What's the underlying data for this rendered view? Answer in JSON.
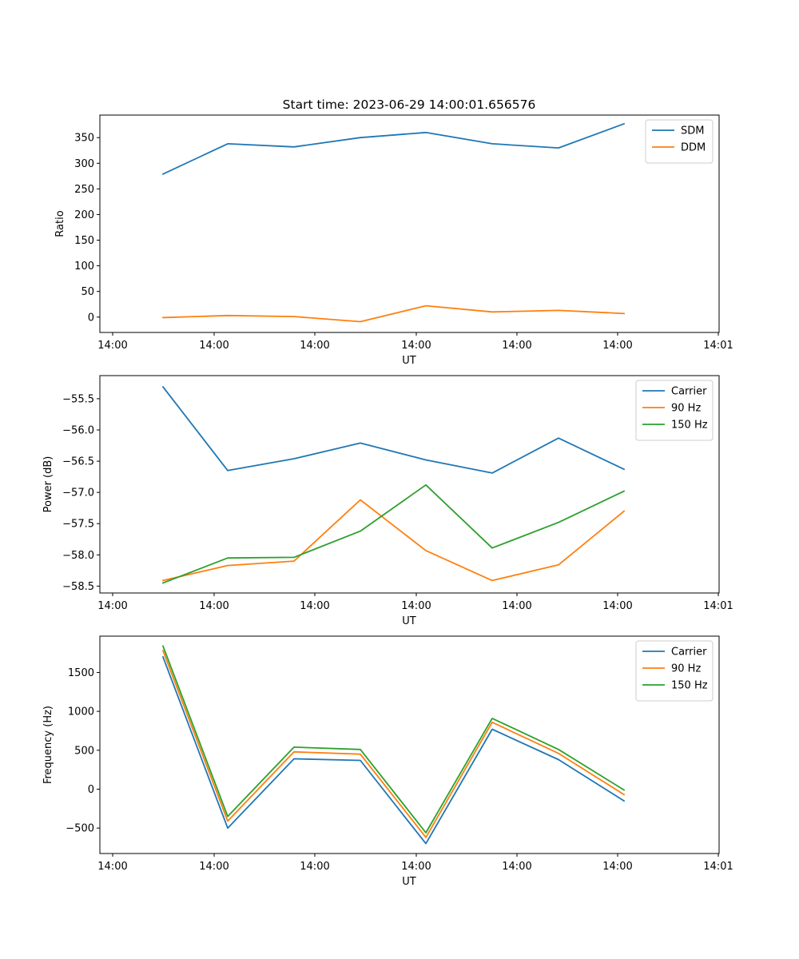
{
  "figure": {
    "title": "Start time: 2023-06-29 14:00:01.656576"
  },
  "chart_data": [
    {
      "type": "line",
      "title": "Start time: 2023-06-29 14:00:01.656576",
      "xlabel": "UT",
      "ylabel": "Ratio",
      "x_tick_labels": [
        "14:00",
        "14:00",
        "14:00",
        "14:00",
        "14:00",
        "14:00",
        "14:01"
      ],
      "y_ticks": [
        0,
        50,
        100,
        150,
        200,
        250,
        300,
        350
      ],
      "y_tick_labels": [
        "0",
        "50",
        "100",
        "150",
        "200",
        "250",
        "300",
        "350"
      ],
      "ylim": [
        -30,
        394
      ],
      "legend_position": "top-right",
      "grid": false,
      "series": [
        {
          "name": "SDM",
          "color": "#1f77b4",
          "values": [
            279,
            338,
            332,
            350,
            360,
            338,
            330,
            377
          ]
        },
        {
          "name": "DDM",
          "color": "#ff7f0e",
          "values": [
            -1,
            3,
            1,
            -9,
            22,
            10,
            13,
            7
          ]
        }
      ]
    },
    {
      "type": "line",
      "title": "",
      "xlabel": "UT",
      "ylabel": "Power (dB)",
      "x_tick_labels": [
        "14:00",
        "14:00",
        "14:00",
        "14:00",
        "14:00",
        "14:00",
        "14:01"
      ],
      "y_ticks": [
        -58.5,
        -58.0,
        -57.5,
        -57.0,
        -56.5,
        -56.0,
        -55.5
      ],
      "y_tick_labels": [
        "−58.5",
        "−58.0",
        "−57.5",
        "−57.0",
        "−56.5",
        "−56.0",
        "−55.5"
      ],
      "ylim": [
        -58.61,
        -55.13
      ],
      "legend_position": "top-right",
      "grid": false,
      "series": [
        {
          "name": "Carrier",
          "color": "#1f77b4",
          "values": [
            -55.31,
            -56.65,
            -56.46,
            -56.21,
            -56.48,
            -56.69,
            -56.13,
            -56.63
          ]
        },
        {
          "name": "90 Hz",
          "color": "#ff7f0e",
          "values": [
            -58.41,
            -58.17,
            -58.1,
            -57.12,
            -57.93,
            -58.41,
            -58.16,
            -57.3
          ]
        },
        {
          "name": "150 Hz",
          "color": "#2ca02c",
          "values": [
            -58.45,
            -58.05,
            -58.04,
            -57.62,
            -56.88,
            -57.89,
            -57.48,
            -56.98
          ]
        }
      ]
    },
    {
      "type": "line",
      "title": "",
      "xlabel": "UT",
      "ylabel": "Frequency (Hz)",
      "x_tick_labels": [
        "14:00",
        "14:00",
        "14:00",
        "14:00",
        "14:00",
        "14:00",
        "14:01"
      ],
      "y_ticks": [
        -500,
        0,
        500,
        1000,
        1500
      ],
      "y_tick_labels": [
        "−500",
        "0",
        "500",
        "1000",
        "1500"
      ],
      "ylim": [
        -827,
        1967
      ],
      "legend_position": "top-right",
      "grid": false,
      "series": [
        {
          "name": "Carrier",
          "color": "#1f77b4",
          "values": [
            1700,
            -500,
            390,
            370,
            -700,
            770,
            380,
            -150
          ]
        },
        {
          "name": "90 Hz",
          "color": "#ff7f0e",
          "values": [
            1780,
            -410,
            480,
            450,
            -620,
            860,
            460,
            -70
          ]
        },
        {
          "name": "150 Hz",
          "color": "#2ca02c",
          "values": [
            1840,
            -350,
            540,
            510,
            -560,
            910,
            510,
            -10
          ]
        }
      ]
    }
  ]
}
